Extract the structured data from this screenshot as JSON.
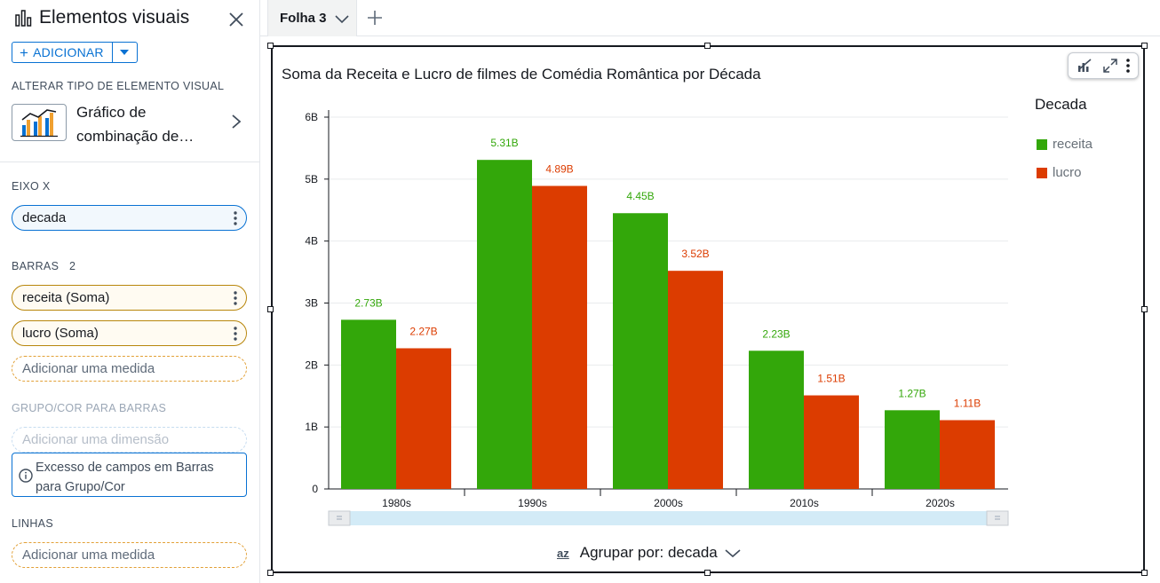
{
  "panel": {
    "title": "Elementos visuais",
    "add_label": "ADICIONAR",
    "change_type_label": "ALTERAR TIPO DE ELEMENTO VISUAL",
    "visual_type_name": "Gráfico de combinação de…",
    "x_axis_label": "EIXO X",
    "x_axis_field": "decada",
    "bars_label": "BARRAS",
    "bars_count": "2",
    "bar_fields": [
      "receita (Soma)",
      "lucro (Soma)"
    ],
    "add_measure": "Adicionar uma medida",
    "group_color_label": "GRUPO/COR PARA BARRAS",
    "add_dimension": "Adicionar uma dimensão",
    "warning": "Excesso de campos em Barras para Grupo/Cor",
    "lines_label": "LINHAS",
    "add_measure_lines": "Adicionar uma medida"
  },
  "tabs": {
    "active": "Folha 3"
  },
  "visual": {
    "title": "Soma da Receita e Lucro de filmes de Comédia Romântica por Década",
    "legend_title": "Decada",
    "group_by": "Agrupar por: decada",
    "sort_icon_text": "az"
  },
  "colors": {
    "receita": "#33a70a",
    "lucro": "#dc3c00",
    "accent": "#0972d3"
  },
  "chart_data": {
    "type": "bar",
    "categories": [
      "1980s",
      "1990s",
      "2000s",
      "2010s",
      "2020s"
    ],
    "series": [
      {
        "name": "receita",
        "values": [
          2.73,
          5.31,
          4.45,
          2.23,
          1.27
        ],
        "labels": [
          "2.73B",
          "5.31B",
          "4.45B",
          "2.23B",
          "1.27B"
        ]
      },
      {
        "name": "lucro",
        "values": [
          2.27,
          4.89,
          3.52,
          1.51,
          1.11
        ],
        "labels": [
          "2.27B",
          "4.89B",
          "3.52B",
          "1.51B",
          "1.11B"
        ]
      }
    ],
    "yticks": [
      "0",
      "1B",
      "2B",
      "3B",
      "4B",
      "5B",
      "6B"
    ],
    "ylim": [
      0,
      6
    ],
    "grid": true,
    "legend_position": "right"
  }
}
